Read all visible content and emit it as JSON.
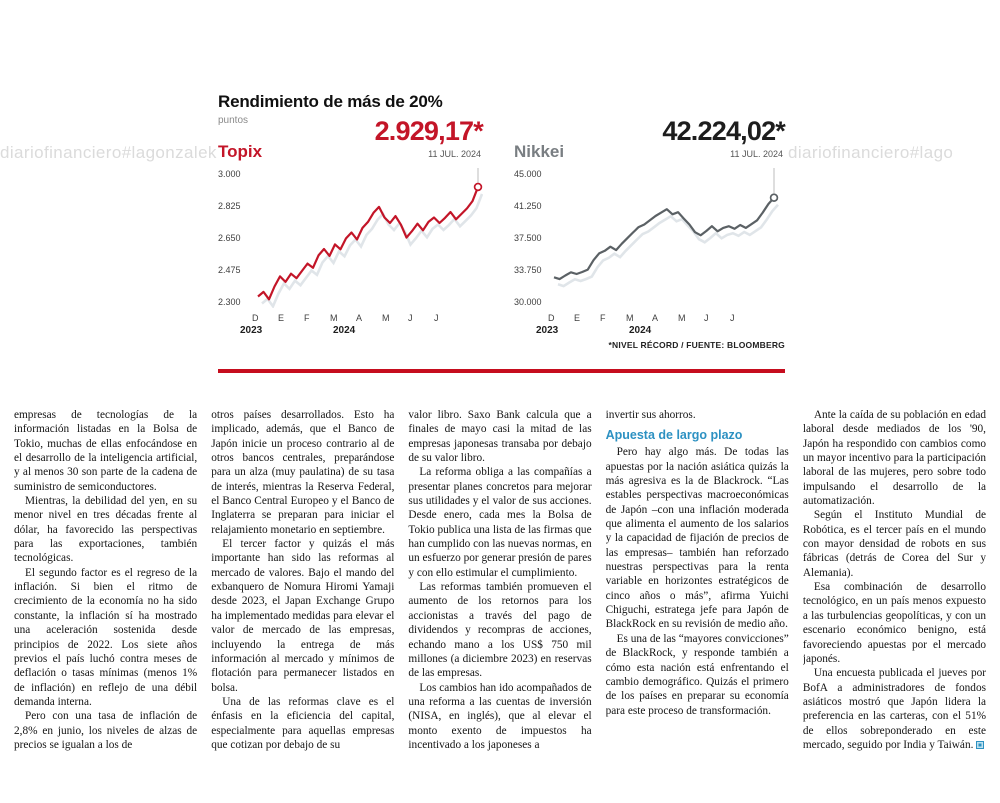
{
  "watermarks": {
    "left": "diariofinanciero#lagonzalek",
    "right": "diariofinanciero#lago"
  },
  "chart_header": {
    "title": "Rendimiento de más de 20%",
    "subtitle": "puntos",
    "source_note": "*NIVEL RÉCORD / FUENTE: BLOOMBERG"
  },
  "chart_style": {
    "shadow_color": "#ccd4da",
    "divider_color": "#c60d1e"
  },
  "chart_data": [
    {
      "type": "line",
      "name": "Topix",
      "value": "2.929,17*",
      "value_date": "11 JUL. 2024",
      "line_color": "#c31528",
      "ylim": [
        2300,
        3000
      ],
      "y_ticks": [
        "3.000",
        "2.825",
        "2.650",
        "2.475",
        "2.300"
      ],
      "x_ticks": [
        "D",
        "E",
        "F",
        "M",
        "A",
        "M",
        "J",
        "J"
      ],
      "year_labels": [
        "2023",
        "2024"
      ],
      "values": [
        2330,
        2355,
        2315,
        2385,
        2440,
        2410,
        2455,
        2430,
        2470,
        2510,
        2487,
        2555,
        2590,
        2552,
        2615,
        2588,
        2648,
        2680,
        2642,
        2705,
        2738,
        2788,
        2820,
        2762,
        2732,
        2770,
        2722,
        2652,
        2688,
        2728,
        2692,
        2738,
        2762,
        2732,
        2760,
        2792,
        2752,
        2782,
        2812,
        2852,
        2929
      ]
    },
    {
      "type": "line",
      "name": "Nikkei",
      "value": "42.224,02*",
      "value_date": "11 JUL. 2024",
      "line_color": "#5b6165",
      "ylim": [
        30000,
        45000
      ],
      "y_ticks": [
        "45.000",
        "41.250",
        "37.500",
        "33.750",
        "30.000"
      ],
      "x_ticks": [
        "D",
        "E",
        "F",
        "M",
        "A",
        "M",
        "J",
        "J"
      ],
      "year_labels": [
        "2023",
        "2024"
      ],
      "values": [
        32900,
        32680,
        33100,
        33480,
        33280,
        33520,
        33800,
        34900,
        35700,
        36000,
        36480,
        36080,
        36820,
        37480,
        38150,
        38780,
        39080,
        39580,
        40080,
        40480,
        40880,
        40280,
        40520,
        39780,
        39080,
        38180,
        37820,
        38320,
        38880,
        38280,
        38680,
        38880,
        38580,
        39020,
        38680,
        39120,
        39580,
        40480,
        41480,
        42224
      ]
    }
  ],
  "article": {
    "subheading": "Apuesta de largo plazo",
    "columns": [
      {
        "blocks": [
          {
            "type": "p",
            "cont": true,
            "text": "empresas de tecnologías de la información listadas en la Bolsa de Tokio, muchas de ellas enfocándose en el desarrollo de la inteligencia artificial, y al menos 30 son parte de la cadena de suministro de semiconductores."
          },
          {
            "type": "p",
            "text": "Mientras, la debilidad del yen, en su menor nivel en tres décadas frente al dólar, ha favorecido las perspectivas para las exportaciones, también tecnológicas."
          },
          {
            "type": "p",
            "text": "El segundo factor es el regreso de la inflación. Si bien el ritmo de crecimiento de la economía no ha sido constante, la inflación sí ha mostrado una aceleración sostenida desde principios de 2022. Los siete años previos el país luchó contra meses de deflación o tasas mínimas (menos 1% de inflación) en reflejo de una débil demanda interna."
          },
          {
            "type": "p",
            "text": "Pero con una tasa de inflación de 2,8% en junio, los niveles de alzas de precios se igualan a los de"
          }
        ]
      },
      {
        "blocks": [
          {
            "type": "p",
            "cont": true,
            "text": "otros países desarrollados. Esto ha implicado, además, que el Banco de Japón inicie un proceso contrario al de otros bancos centrales, preparándose para un alza (muy paulatina) de su tasa de interés, mientras la Reserva Federal, el Banco Central Europeo y el Banco de Inglaterra se preparan para iniciar el relajamiento monetario en septiembre."
          },
          {
            "type": "p",
            "text": "El tercer factor y quizás el más importante han sido las reformas al mercado de valores. Bajo el mando del exbanquero de Nomura Hiromi Yamaji desde 2023, el Japan Exchange Grupo ha implementado medidas para elevar el valor de mercado de las empresas, incluyendo la entrega de más información al mercado y mínimos de flotación para permanecer listados en bolsa."
          },
          {
            "type": "p",
            "text": "Una de las reformas clave es el énfasis en la eficiencia del capital, especialmente para aquellas empresas que cotizan por debajo de su"
          }
        ]
      },
      {
        "blocks": [
          {
            "type": "p",
            "cont": true,
            "text": "valor libro. Saxo Bank calcula que a finales de mayo casi la mitad de las empresas japonesas transaba por debajo de su valor libro."
          },
          {
            "type": "p",
            "text": "La reforma obliga a las compañías a presentar planes concretos para mejorar sus utilidades y el valor de sus acciones. Desde enero, cada mes la Bolsa de Tokio publica una lista de las firmas que han cumplido con las nuevas normas, en un esfuerzo por generar presión de pares y con ello estimular el cumplimiento."
          },
          {
            "type": "p",
            "text": "Las reformas también promueven el aumento de los retornos para los accionistas a través del pago de dividendos y recompras de acciones, echando mano a los US$ 750 mil millones (a diciembre 2023) en reservas de las empresas."
          },
          {
            "type": "p",
            "text": "Los cambios han ido acompañados de una reforma a las cuentas de inversión (NISA, en inglés), que al elevar el monto exento de impuestos ha incentivado a los japoneses a"
          }
        ]
      },
      {
        "blocks": [
          {
            "type": "p",
            "cont": true,
            "text": "invertir sus ahorros."
          },
          {
            "type": "h",
            "text": "Apuesta de largo plazo"
          },
          {
            "type": "p",
            "text": "Pero hay algo más. De todas las apuestas por la nación asiática quizás la más agresiva es la de Blackrock. “Las estables perspectivas macroeconómicas de Japón –con una inflación moderada que alimenta el aumento de los salarios y la capacidad de fijación de precios de las empresas– también han reforzado nuestras perspectivas para la renta variable en horizontes estratégicos de cinco años o más”, afirma Yuichi Chiguchi, estratega jefe para Japón de BlackRock en su revisión de medio año."
          },
          {
            "type": "p",
            "text": "Es una de las “mayores convicciones” de BlackRock, y responde también a cómo esta nación está enfrentando el cambio demográfico. Quizás el primero de los países en preparar su economía para este proceso de transformación."
          }
        ]
      },
      {
        "blocks": [
          {
            "type": "p",
            "text": "Ante la caída de su población en edad laboral desde mediados de los '90, Japón ha respondido con cambios como un mayor incentivo para la participación laboral de las mujeres, pero sobre todo impulsando el desarrollo de la automatización."
          },
          {
            "type": "p",
            "text": "Según el Instituto Mundial de Robótica, es el tercer país en el mundo con mayor densidad de robots en sus fábricas (detrás de Corea del Sur y Alemania)."
          },
          {
            "type": "p",
            "text": "Esa combinación de desarrollo tecnológico, en un país menos expuesto a las turbulencias geopolíticas, y con un escenario económico benigno, está favoreciendo apuestas por el mercado japonés."
          },
          {
            "type": "p",
            "end": true,
            "text": "Una encuesta publicada el jueves por BofA a administradores de fondos asiáticos mostró que Japón lidera la preferencia en las carteras, con el 51% de ellos sobreponderado en este mercado, seguido por India y Taiwán."
          }
        ]
      }
    ]
  }
}
